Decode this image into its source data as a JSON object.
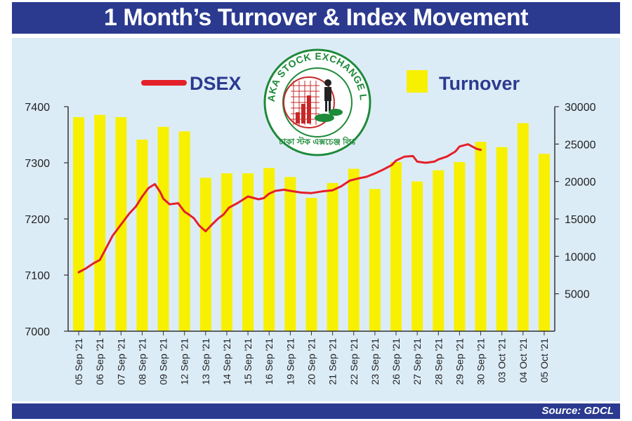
{
  "title": "1 Month’s Turnover & Index Movement",
  "source": "Source: GDCL",
  "logo": {
    "ring_text": "DHAKA STOCK EXCHANGE LTD.",
    "bottom_text": "ঢাকা স্টক এক্সচেঞ্জ লিঃ"
  },
  "colors": {
    "header": "#2b3a8f",
    "panel": "#dcecf7",
    "bar": "#f7f000",
    "line": "#e4202a",
    "legend_text": "#2b3a8f",
    "logo_green": "#1e8a3a",
    "logo_red": "#c62828"
  },
  "chart_data": {
    "type": "bar",
    "categories": [
      "05 Sep '21",
      "06 Sep '21",
      "07 Sep '21",
      "08 Sep '21",
      "09 Sep '21",
      "12 Sep '21",
      "13 Sep '21",
      "14 Sep '21",
      "15 Sep '21",
      "16 Sep '21",
      "19 Sep '21",
      "20 Sep '21",
      "21 Sep '21",
      "22 Sep '21",
      "23 Sep '21",
      "26 Sep '21",
      "27 Sep '21",
      "28 Sep '21",
      "29 Sep '21",
      "30 Sep '21",
      "03 Oct '21",
      "04 Oct '21",
      "05 Oct '21"
    ],
    "series": [
      {
        "name": "Turnover",
        "type": "bar",
        "axis": "right",
        "values": [
          28600,
          28900,
          28600,
          25600,
          27300,
          26700,
          20500,
          21100,
          21100,
          21800,
          20600,
          17800,
          19800,
          21700,
          19000,
          22600,
          20000,
          21500,
          22600,
          25300,
          24600,
          27800,
          23700
        ]
      },
      {
        "name": "DSEX",
        "type": "line",
        "axis": "left",
        "points": [
          [
            0,
            7105
          ],
          [
            0.35,
            7112
          ],
          [
            0.7,
            7121
          ],
          [
            1.0,
            7127
          ],
          [
            1.3,
            7148
          ],
          [
            1.6,
            7170
          ],
          [
            2.0,
            7190
          ],
          [
            2.4,
            7210
          ],
          [
            2.7,
            7222
          ],
          [
            3.0,
            7240
          ],
          [
            3.3,
            7255
          ],
          [
            3.6,
            7262
          ],
          [
            3.85,
            7248
          ],
          [
            4.0,
            7236
          ],
          [
            4.3,
            7226
          ],
          [
            4.7,
            7228
          ],
          [
            5.0,
            7213
          ],
          [
            5.2,
            7208
          ],
          [
            5.45,
            7201
          ],
          [
            5.7,
            7188
          ],
          [
            6.0,
            7178
          ],
          [
            6.3,
            7190
          ],
          [
            6.6,
            7201
          ],
          [
            6.85,
            7208
          ],
          [
            7.1,
            7220
          ],
          [
            7.5,
            7228
          ],
          [
            8.0,
            7240
          ],
          [
            8.5,
            7235
          ],
          [
            8.75,
            7237
          ],
          [
            9.0,
            7245
          ],
          [
            9.3,
            7250
          ],
          [
            9.7,
            7252
          ],
          [
            10.0,
            7250
          ],
          [
            10.5,
            7247
          ],
          [
            11.0,
            7246
          ],
          [
            11.5,
            7249
          ],
          [
            12.0,
            7251
          ],
          [
            12.4,
            7258
          ],
          [
            12.8,
            7268
          ],
          [
            13.2,
            7272
          ],
          [
            13.6,
            7275
          ],
          [
            14.0,
            7281
          ],
          [
            14.4,
            7288
          ],
          [
            14.8,
            7296
          ],
          [
            15.0,
            7304
          ],
          [
            15.4,
            7311
          ],
          [
            15.8,
            7312
          ],
          [
            16.0,
            7302
          ],
          [
            16.4,
            7300
          ],
          [
            16.8,
            7302
          ],
          [
            17.0,
            7306
          ],
          [
            17.4,
            7311
          ],
          [
            17.8,
            7320
          ],
          [
            18.0,
            7329
          ],
          [
            18.4,
            7333
          ],
          [
            18.8,
            7325
          ],
          [
            19.0,
            7323
          ]
        ]
      }
    ],
    "yleft": {
      "ticks": [
        7000,
        7100,
        7200,
        7300,
        7400
      ],
      "lim": [
        7000,
        7400
      ]
    },
    "yright": {
      "ticks": [
        5000,
        10000,
        15000,
        20000,
        25000,
        30000
      ],
      "lim": [
        0,
        30000
      ]
    },
    "legend": [
      {
        "label": "DSEX",
        "kind": "line"
      },
      {
        "label": "Turnover",
        "kind": "bar"
      }
    ],
    "legend_position": "top"
  }
}
